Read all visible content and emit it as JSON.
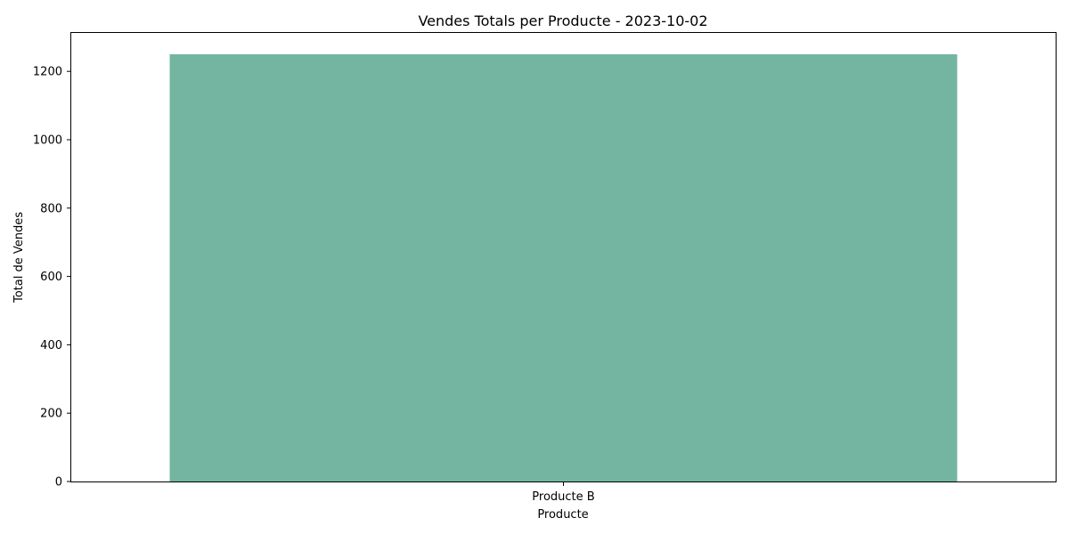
{
  "chart_data": {
    "type": "bar",
    "title": "Vendes Totals per Producte - 2023-10-02",
    "xlabel": "Producte",
    "ylabel": "Total de Vendes",
    "categories": [
      "Producte B"
    ],
    "values": [
      1250
    ],
    "ylim": [
      0,
      1312.5
    ],
    "yticks": [
      0,
      200,
      400,
      600,
      800,
      1000,
      1200
    ],
    "bar_color": "#74b5a1",
    "grid": false,
    "legend": "none"
  }
}
